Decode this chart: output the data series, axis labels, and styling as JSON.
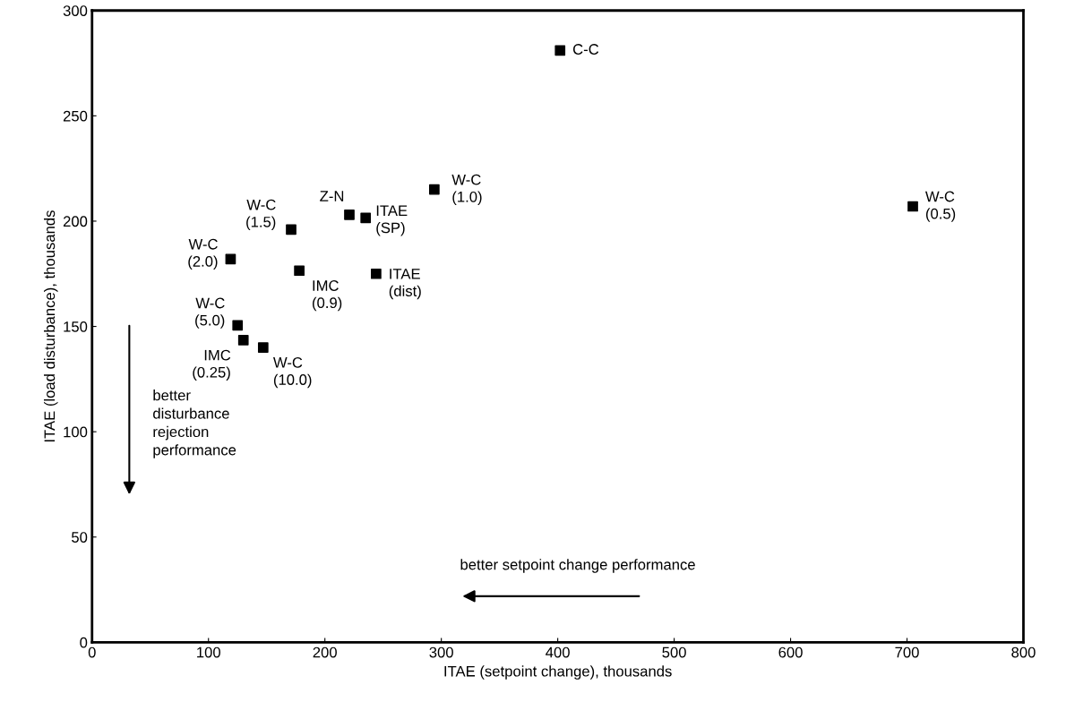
{
  "chart_data": {
    "type": "scatter",
    "xlabel": "ITAE (setpoint change), thousands",
    "ylabel": "ITAE (load disturbance), thousands",
    "xlim": [
      0,
      800
    ],
    "xticks": [
      0,
      100,
      200,
      300,
      400,
      500,
      600,
      700,
      800
    ],
    "ylim": [
      0,
      300
    ],
    "yticks": [
      0,
      50,
      100,
      150,
      200,
      250,
      300
    ],
    "grid": false,
    "legend": false,
    "marker": "square",
    "series": [
      {
        "color": "#000000",
        "x": [
          402,
          705,
          294,
          171,
          221,
          235,
          119,
          178,
          244,
          125,
          130,
          147
        ],
        "values": [
          281,
          207,
          215,
          196,
          203,
          201.5,
          182,
          176.5,
          175,
          150.5,
          143.5,
          140
        ]
      }
    ],
    "annotations": [
      "better\ndisturbance\nrejection\nperformance",
      "better setpoint change performance",
      {
        "text": "C-C",
        "x": 402,
        "y": 281
      },
      {
        "text": "W-C\n(0.5)",
        "x": 705,
        "y": 207
      },
      {
        "text": "W-C\n(1.0)",
        "x": 294,
        "y": 215
      },
      {
        "text": "W-C\n(1.5)",
        "x": 171,
        "y": 196
      },
      {
        "text": "Z-N",
        "x": 221,
        "y": 203
      },
      {
        "text": "ITAE\n(SP)",
        "x": 235,
        "y": 201.5
      },
      {
        "text": "W-C\n(2.0)",
        "x": 119,
        "y": 182
      },
      {
        "text": "IMC\n(0.9)",
        "x": 178,
        "y": 176.5
      },
      {
        "text": "ITAE\n(dist)",
        "x": 244,
        "y": 175
      },
      {
        "text": "W-C\n(5.0)",
        "x": 125,
        "y": 150.5
      },
      {
        "text": "IMC\n(0.25)",
        "x": 130,
        "y": 143.5
      },
      {
        "text": "W-C\n(10.0)",
        "x": 147,
        "y": 140
      }
    ]
  }
}
